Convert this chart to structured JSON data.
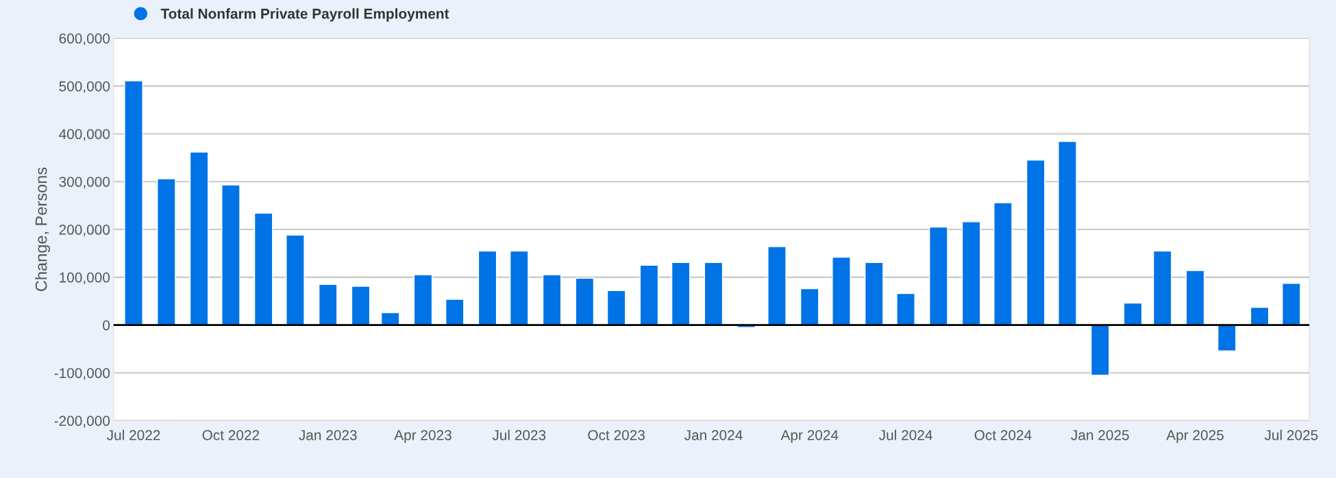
{
  "chart_data": {
    "type": "bar",
    "ylabel": "Change, Persons",
    "x": [
      "2022-07",
      "2022-08",
      "2022-09",
      "2022-10",
      "2022-11",
      "2022-12",
      "2023-01",
      "2023-02",
      "2023-03",
      "2023-04",
      "2023-05",
      "2023-06",
      "2023-07",
      "2023-08",
      "2023-09",
      "2023-10",
      "2023-11",
      "2023-12",
      "2024-01",
      "2024-02",
      "2024-03",
      "2024-04",
      "2024-05",
      "2024-06",
      "2024-07",
      "2024-08",
      "2024-09",
      "2024-10",
      "2024-11",
      "2024-12",
      "2025-01",
      "2025-02",
      "2025-03",
      "2025-04",
      "2025-05",
      "2025-06",
      "2025-07"
    ],
    "series": [
      {
        "name": "Total Nonfarm Private Payroll Employment",
        "color": "#0073e6",
        "values": [
          511000,
          306000,
          362000,
          293000,
          234000,
          188000,
          85000,
          81000,
          26000,
          105000,
          54000,
          155000,
          155000,
          105000,
          98000,
          72000,
          125000,
          131000,
          131000,
          -5000,
          164000,
          76000,
          142000,
          131000,
          66000,
          205000,
          216000,
          256000,
          345000,
          384000,
          -105000,
          46000,
          155000,
          114000,
          -54000,
          37000,
          87000
        ]
      }
    ],
    "xlim": [
      "2022-06-12",
      "2025-07-18"
    ],
    "xticks": [
      {
        "value": "2022-07",
        "label": "Jul 2022"
      },
      {
        "value": "2022-10",
        "label": "Oct 2022"
      },
      {
        "value": "2023-01",
        "label": "Jan 2023"
      },
      {
        "value": "2023-04",
        "label": "Apr 2023"
      },
      {
        "value": "2023-07",
        "label": "Jul 2023"
      },
      {
        "value": "2023-10",
        "label": "Oct 2023"
      },
      {
        "value": "2024-01",
        "label": "Jan 2024"
      },
      {
        "value": "2024-04",
        "label": "Apr 2024"
      },
      {
        "value": "2024-07",
        "label": "Jul 2024"
      },
      {
        "value": "2024-10",
        "label": "Oct 2024"
      },
      {
        "value": "2025-01",
        "label": "Jan 2025"
      },
      {
        "value": "2025-04",
        "label": "Apr 2025"
      },
      {
        "value": "2025-07",
        "label": "Jul 2025"
      }
    ],
    "ylim": [
      -200000,
      600000
    ],
    "yticks": [
      {
        "value": -200000,
        "label": "-200,000"
      },
      {
        "value": -100000,
        "label": "-100,000"
      },
      {
        "value": 0,
        "label": "0"
      },
      {
        "value": 100000,
        "label": "100,000"
      },
      {
        "value": 200000,
        "label": "200,000"
      },
      {
        "value": 300000,
        "label": "300,000"
      },
      {
        "value": 400000,
        "label": "400,000"
      },
      {
        "value": 500000,
        "label": "500,000"
      },
      {
        "value": 600000,
        "label": "600,000"
      }
    ],
    "ref_lines": [
      {
        "axis": "y",
        "value": 0,
        "color": "#000000"
      }
    ],
    "grid": "y",
    "legend": "top left"
  }
}
